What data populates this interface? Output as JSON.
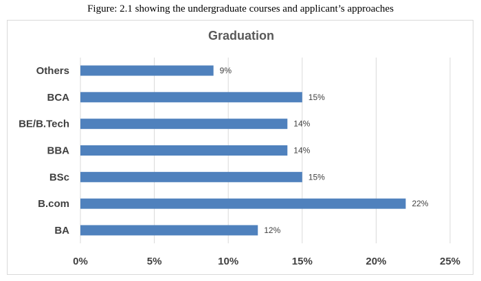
{
  "caption": "Figure: 2.1 showing the undergraduate courses and applicant’s approaches",
  "chart_data": {
    "type": "bar",
    "orientation": "horizontal",
    "title": "Graduation",
    "categories": [
      "Others",
      "BCA",
      "BE/B.Tech",
      "BBA",
      "BSc",
      "B.com",
      "BA"
    ],
    "values": [
      9,
      15,
      14,
      14,
      15,
      22,
      12
    ],
    "value_labels": [
      "9%",
      "15%",
      "14%",
      "14%",
      "15%",
      "22%",
      "12%"
    ],
    "xlim": [
      0,
      25
    ],
    "xticks": [
      0,
      5,
      10,
      15,
      20,
      25
    ],
    "xtick_labels": [
      "0%",
      "5%",
      "10%",
      "15%",
      "20%",
      "25%"
    ],
    "grid": "vertical",
    "legend": "none",
    "bar_color": "#4F81BD"
  }
}
